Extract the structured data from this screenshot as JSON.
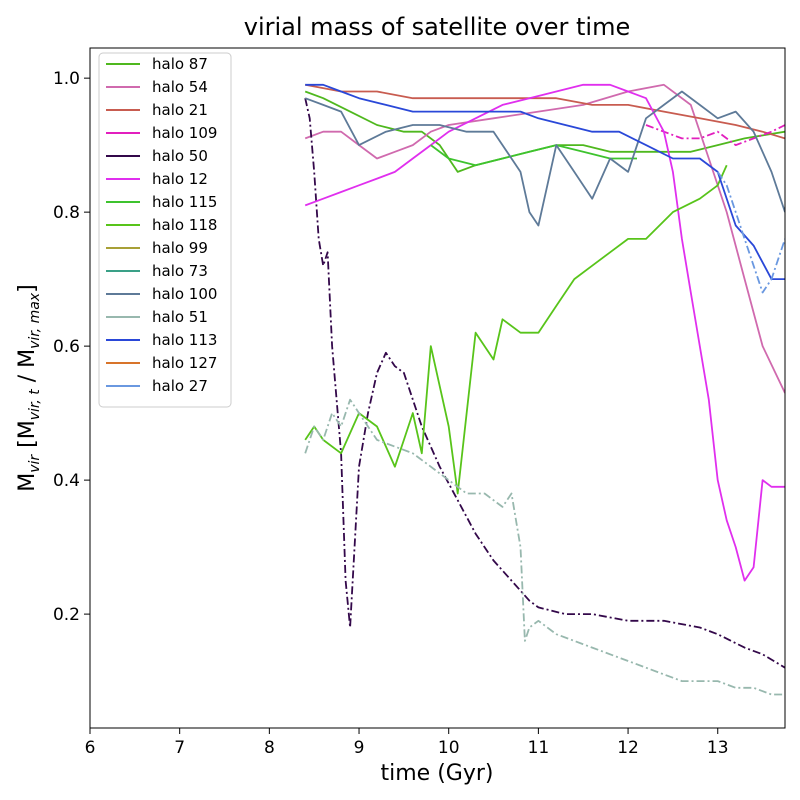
{
  "chart_data": {
    "type": "line",
    "title": "virial mass of satellite over time",
    "xlabel": "time (Gyr)",
    "ylabel_main": "M",
    "ylabel_sub": "vir",
    "ylabel_bracket_open": " [M",
    "ylabel_sub_t": "vir, t",
    "ylabel_mid": " / M",
    "ylabel_sub_max": "vir, max",
    "ylabel_bracket_close": "]",
    "xlim": [
      6,
      13.75
    ],
    "ylim": [
      0.03,
      1.045
    ],
    "xticks": [
      "6",
      "7",
      "8",
      "9",
      "10",
      "11",
      "12",
      "13"
    ],
    "yticks": [
      "0.2",
      "0.4",
      "0.6",
      "0.8",
      "1.0"
    ],
    "grid": false,
    "legend_position": "top-left",
    "series": [
      {
        "name": "halo 87",
        "color": "#4fb81e",
        "dash": "",
        "x": [
          8.4,
          8.6,
          8.9,
          9.2,
          9.5,
          9.7,
          9.9,
          10.1,
          10.3,
          10.6,
          10.9,
          11.2,
          11.5,
          11.8,
          12.1,
          12.4,
          12.7,
          13.0,
          13.3,
          13.75
        ],
        "y": [
          0.98,
          0.97,
          0.95,
          0.93,
          0.92,
          0.92,
          0.9,
          0.86,
          0.87,
          0.88,
          0.89,
          0.9,
          0.9,
          0.89,
          0.89,
          0.89,
          0.89,
          0.9,
          0.91,
          0.92
        ]
      },
      {
        "name": "halo 54",
        "color": "#d06aae",
        "dash": "",
        "x": [
          8.4,
          8.6,
          8.8,
          9.0,
          9.2,
          9.4,
          9.6,
          9.8,
          10.0,
          10.5,
          11.0,
          11.5,
          12.0,
          12.4,
          12.7,
          12.9,
          13.1,
          13.3,
          13.5,
          13.75
        ],
        "y": [
          0.91,
          0.92,
          0.92,
          0.9,
          0.88,
          0.89,
          0.9,
          0.92,
          0.93,
          0.94,
          0.95,
          0.96,
          0.98,
          0.99,
          0.96,
          0.88,
          0.8,
          0.7,
          0.6,
          0.53
        ]
      },
      {
        "name": "halo 21",
        "color": "#c85c50",
        "dash": "",
        "x": [
          8.4,
          8.8,
          9.2,
          9.6,
          10.0,
          10.4,
          10.8,
          11.2,
          11.6,
          12.0,
          12.4,
          12.8,
          13.2,
          13.5,
          13.75
        ],
        "y": [
          0.99,
          0.98,
          0.98,
          0.97,
          0.97,
          0.97,
          0.97,
          0.97,
          0.96,
          0.96,
          0.95,
          0.94,
          0.93,
          0.92,
          0.91
        ]
      },
      {
        "name": "halo 109",
        "color": "#e21fbe",
        "dash": "8,3,2,3",
        "x": [
          12.2,
          12.4,
          12.6,
          12.8,
          13.0,
          13.2,
          13.4,
          13.6,
          13.75
        ],
        "y": [
          0.93,
          0.92,
          0.91,
          0.91,
          0.92,
          0.9,
          0.91,
          0.92,
          0.93
        ]
      },
      {
        "name": "halo 50",
        "color": "#33084a",
        "dash": "8,3,2,3",
        "x": [
          8.4,
          8.45,
          8.5,
          8.55,
          8.6,
          8.65,
          8.7,
          8.8,
          8.85,
          8.9,
          9.0,
          9.1,
          9.2,
          9.3,
          9.4,
          9.5,
          9.7,
          9.9,
          10.1,
          10.3,
          10.5,
          10.7,
          10.9,
          11.0,
          11.3,
          11.6,
          12.0,
          12.4,
          12.8,
          13.0,
          13.3,
          13.5,
          13.75
        ],
        "y": [
          0.97,
          0.94,
          0.86,
          0.76,
          0.72,
          0.74,
          0.6,
          0.44,
          0.25,
          0.18,
          0.42,
          0.5,
          0.56,
          0.59,
          0.57,
          0.56,
          0.48,
          0.42,
          0.37,
          0.32,
          0.28,
          0.25,
          0.22,
          0.21,
          0.2,
          0.2,
          0.19,
          0.19,
          0.18,
          0.17,
          0.15,
          0.14,
          0.12
        ]
      },
      {
        "name": "halo 12",
        "color": "#e02fee",
        "dash": "",
        "x": [
          8.4,
          8.6,
          8.8,
          9.0,
          9.2,
          9.4,
          9.6,
          9.8,
          10.0,
          10.3,
          10.6,
          10.9,
          11.2,
          11.5,
          11.8,
          12.0,
          12.2,
          12.4,
          12.5,
          12.6,
          12.7,
          12.8,
          12.9,
          13.0,
          13.1,
          13.2,
          13.3,
          13.4,
          13.5,
          13.6,
          13.75
        ],
        "y": [
          0.81,
          0.82,
          0.83,
          0.84,
          0.85,
          0.86,
          0.88,
          0.9,
          0.92,
          0.94,
          0.96,
          0.97,
          0.98,
          0.99,
          0.99,
          0.98,
          0.97,
          0.92,
          0.86,
          0.76,
          0.68,
          0.6,
          0.52,
          0.4,
          0.34,
          0.3,
          0.25,
          0.27,
          0.4,
          0.39,
          0.39
        ]
      },
      {
        "name": "halo 115",
        "color": "#3ec32e",
        "dash": "",
        "x": [
          9.8,
          10.0,
          10.3,
          10.6,
          10.9,
          11.2,
          11.5,
          11.8,
          12.1
        ],
        "y": [
          0.9,
          0.88,
          0.87,
          0.88,
          0.89,
          0.9,
          0.89,
          0.88,
          0.88
        ]
      },
      {
        "name": "halo 118",
        "color": "#58c41a",
        "dash": "",
        "x": [
          8.4,
          8.5,
          8.6,
          8.8,
          9.0,
          9.2,
          9.4,
          9.5,
          9.6,
          9.7,
          9.8,
          10.0,
          10.1,
          10.3,
          10.5,
          10.6,
          10.8,
          11.0,
          11.2,
          11.4,
          11.6,
          11.8,
          12.0,
          12.2,
          12.5,
          12.8,
          13.0,
          13.1
        ],
        "y": [
          0.46,
          0.48,
          0.46,
          0.44,
          0.5,
          0.48,
          0.42,
          0.46,
          0.5,
          0.44,
          0.6,
          0.48,
          0.38,
          0.62,
          0.58,
          0.64,
          0.62,
          0.62,
          0.66,
          0.7,
          0.72,
          0.74,
          0.76,
          0.76,
          0.8,
          0.82,
          0.84,
          0.87
        ]
      },
      {
        "name": "halo 99",
        "color": "#a8a036",
        "dash": "",
        "x": [],
        "y": []
      },
      {
        "name": "halo 73",
        "color": "#3aa087",
        "dash": "",
        "x": [],
        "y": []
      },
      {
        "name": "halo 100",
        "color": "#5e7a98",
        "dash": "",
        "x": [
          8.4,
          8.6,
          8.8,
          9.0,
          9.3,
          9.6,
          9.9,
          10.2,
          10.5,
          10.8,
          10.9,
          11.0,
          11.2,
          11.4,
          11.6,
          11.8,
          12.0,
          12.2,
          12.4,
          12.6,
          12.8,
          13.0,
          13.2,
          13.4,
          13.6,
          13.75
        ],
        "y": [
          0.97,
          0.96,
          0.95,
          0.9,
          0.92,
          0.93,
          0.93,
          0.92,
          0.92,
          0.86,
          0.8,
          0.78,
          0.9,
          0.86,
          0.82,
          0.88,
          0.86,
          0.94,
          0.96,
          0.98,
          0.96,
          0.94,
          0.95,
          0.92,
          0.86,
          0.8
        ]
      },
      {
        "name": "halo 51",
        "color": "#98b8ae",
        "dash": "8,3,2,3",
        "x": [
          8.4,
          8.5,
          8.6,
          8.7,
          8.8,
          8.9,
          9.0,
          9.2,
          9.4,
          9.6,
          9.8,
          10.0,
          10.2,
          10.4,
          10.6,
          10.7,
          10.8,
          10.85,
          10.9,
          11.0,
          11.2,
          11.4,
          11.6,
          11.8,
          12.0,
          12.2,
          12.4,
          12.6,
          12.8,
          13.0,
          13.2,
          13.4,
          13.6,
          13.75
        ],
        "y": [
          0.44,
          0.48,
          0.46,
          0.5,
          0.48,
          0.52,
          0.5,
          0.46,
          0.45,
          0.44,
          0.42,
          0.4,
          0.38,
          0.38,
          0.36,
          0.38,
          0.3,
          0.16,
          0.18,
          0.19,
          0.17,
          0.16,
          0.15,
          0.14,
          0.13,
          0.12,
          0.11,
          0.1,
          0.1,
          0.1,
          0.09,
          0.09,
          0.08,
          0.08
        ]
      },
      {
        "name": "halo 113",
        "color": "#2a48d8",
        "dash": "",
        "x": [
          8.4,
          8.6,
          8.8,
          9.0,
          9.3,
          9.6,
          9.9,
          10.2,
          10.5,
          10.8,
          11.0,
          11.3,
          11.6,
          11.9,
          12.2,
          12.5,
          12.8,
          13.0,
          13.2,
          13.4,
          13.6,
          13.75
        ],
        "y": [
          0.99,
          0.99,
          0.98,
          0.97,
          0.96,
          0.95,
          0.95,
          0.95,
          0.95,
          0.95,
          0.94,
          0.93,
          0.92,
          0.92,
          0.9,
          0.88,
          0.88,
          0.86,
          0.78,
          0.75,
          0.7,
          0.7
        ]
      },
      {
        "name": "halo 127",
        "color": "#d8742a",
        "dash": "",
        "x": [],
        "y": []
      },
      {
        "name": "halo 27",
        "color": "#6a98e0",
        "dash": "8,3,2,3",
        "x": [
          13.0,
          13.1,
          13.2,
          13.3,
          13.4,
          13.5,
          13.6,
          13.75
        ],
        "y": [
          0.86,
          0.84,
          0.8,
          0.76,
          0.72,
          0.68,
          0.7,
          0.76
        ]
      }
    ]
  }
}
